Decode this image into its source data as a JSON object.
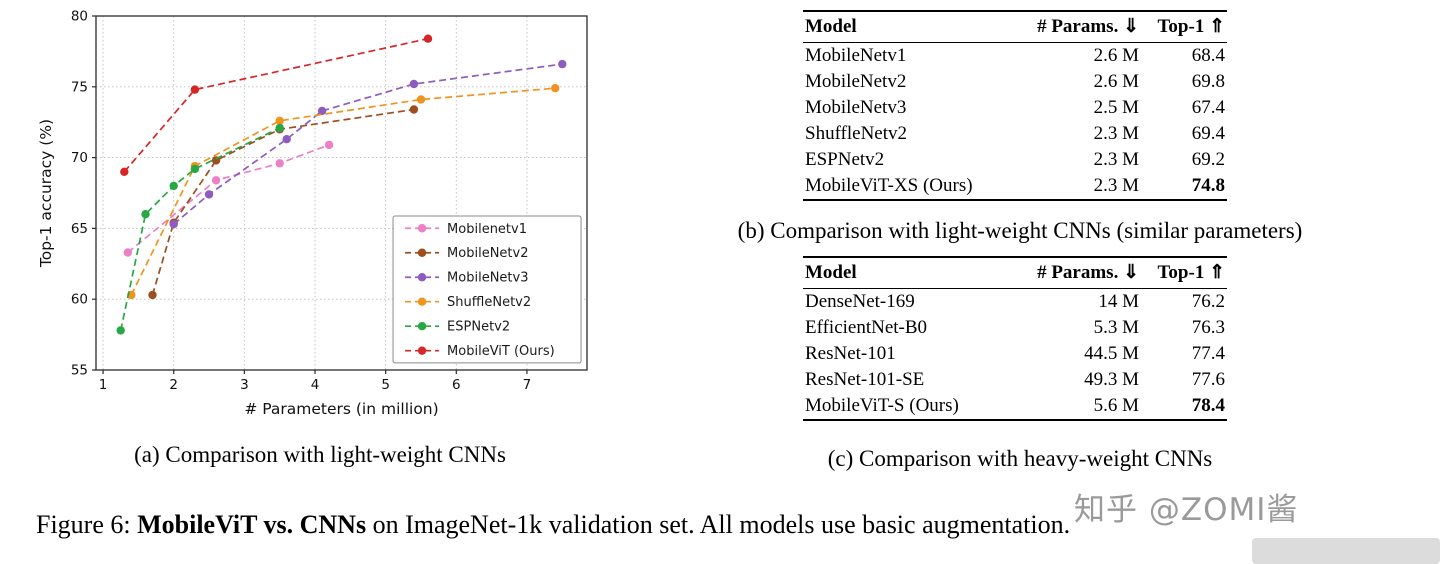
{
  "figure": {
    "caption_prefix": "Figure 6: ",
    "caption_bold": "MobileViT vs. CNNs",
    "caption_rest": " on ImageNet-1k validation set. All models use basic augmentation."
  },
  "subcaptions": {
    "a": "(a) Comparison with light-weight CNNs",
    "b": "(b) Comparison with light-weight CNNs (similar parameters)",
    "c": "(c) Comparison with heavy-weight CNNs"
  },
  "chart_data": {
    "type": "line",
    "title": "",
    "xlabel": "# Parameters (in million)",
    "ylabel": "Top-1 accuracy (%)",
    "xlim": [
      0.9,
      7.85
    ],
    "ylim": [
      55,
      80
    ],
    "xticks": [
      1,
      2,
      3,
      4,
      5,
      6,
      7
    ],
    "yticks": [
      55,
      60,
      65,
      70,
      75,
      80
    ],
    "grid": true,
    "legend_position": "inside lower-right",
    "line_style": "dashed with circle markers",
    "series": [
      {
        "name": "Mobilenetv1",
        "color": "#ed7fc6",
        "points": [
          [
            1.35,
            63.3
          ],
          [
            2.6,
            68.4
          ],
          [
            3.5,
            69.6
          ],
          [
            4.2,
            70.9
          ]
        ]
      },
      {
        "name": "MobileNetv2",
        "color": "#9c4f1d",
        "points": [
          [
            1.7,
            60.3
          ],
          [
            2.0,
            65.4
          ],
          [
            2.6,
            69.8
          ],
          [
            3.5,
            72.0
          ],
          [
            5.4,
            73.4
          ]
        ]
      },
      {
        "name": "MobileNetv3",
        "color": "#8e5bbf",
        "points": [
          [
            2.0,
            65.3
          ],
          [
            2.5,
            67.4
          ],
          [
            3.6,
            71.3
          ],
          [
            4.1,
            73.3
          ],
          [
            5.4,
            75.2
          ],
          [
            7.5,
            76.6
          ]
        ]
      },
      {
        "name": "ShuffleNetv2",
        "color": "#f0941f",
        "points": [
          [
            1.4,
            60.3
          ],
          [
            2.3,
            69.4
          ],
          [
            3.5,
            72.6
          ],
          [
            5.5,
            74.1
          ],
          [
            7.4,
            74.9
          ]
        ]
      },
      {
        "name": "ESPNetv2",
        "color": "#27a844",
        "points": [
          [
            1.25,
            57.8
          ],
          [
            1.6,
            66.0
          ],
          [
            2.0,
            68.0
          ],
          [
            2.3,
            69.2
          ],
          [
            3.5,
            72.1
          ]
        ]
      },
      {
        "name": "MobileViT (Ours)",
        "color": "#d62727",
        "points": [
          [
            1.3,
            69.0
          ],
          [
            2.3,
            74.8
          ],
          [
            5.6,
            78.4
          ]
        ]
      }
    ]
  },
  "tables": {
    "b": {
      "headers": [
        "Model",
        "# Params. ⇓",
        "Top-1 ⇑"
      ],
      "rows": [
        {
          "model": "MobileNetv1",
          "params": "2.6 M",
          "top1": "68.4",
          "bold": false
        },
        {
          "model": "MobileNetv2",
          "params": "2.6 M",
          "top1": "69.8",
          "bold": false
        },
        {
          "model": "MobileNetv3",
          "params": "2.5 M",
          "top1": "67.4",
          "bold": false
        },
        {
          "model": "ShuffleNetv2",
          "params": "2.3 M",
          "top1": "69.4",
          "bold": false
        },
        {
          "model": "ESPNetv2",
          "params": "2.3 M",
          "top1": "69.2",
          "bold": false
        },
        {
          "model": "MobileViT-XS (Ours)",
          "params": "2.3 M",
          "top1": "74.8",
          "bold": true
        }
      ]
    },
    "c": {
      "headers": [
        "Model",
        "# Params. ⇓",
        "Top-1 ⇑"
      ],
      "rows": [
        {
          "model": "DenseNet-169",
          "params": "14 M",
          "top1": "76.2",
          "bold": false
        },
        {
          "model": "EfficientNet-B0",
          "params": "5.3 M",
          "top1": "76.3",
          "bold": false
        },
        {
          "model": "ResNet-101",
          "params": "44.5 M",
          "top1": "77.4",
          "bold": false
        },
        {
          "model": "ResNet-101-SE",
          "params": "49.3 M",
          "top1": "77.6",
          "bold": false
        },
        {
          "model": "MobileViT-S (Ours)",
          "params": "5.6 M",
          "top1": "78.4",
          "bold": true
        }
      ]
    }
  },
  "watermark": {
    "text": "知乎 @ZOMI酱",
    "color": "#9a9a9a"
  }
}
